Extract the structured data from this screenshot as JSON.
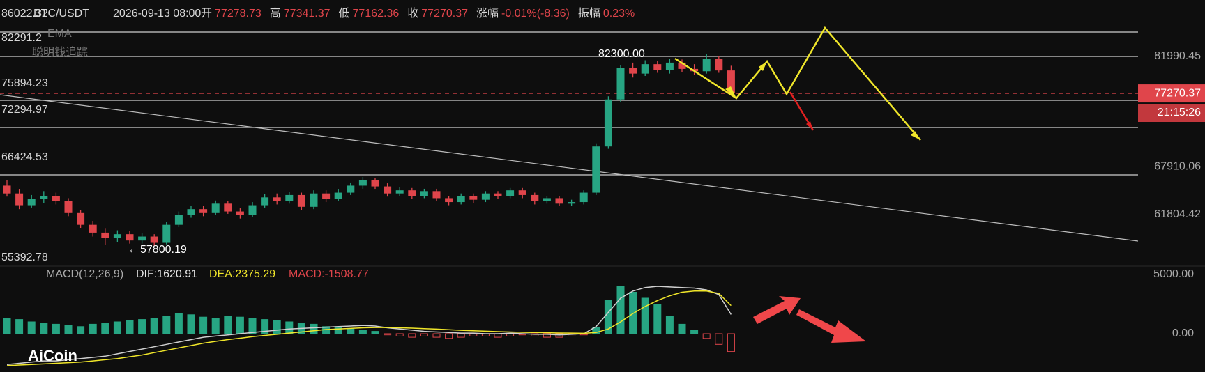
{
  "header": {
    "symbol": "BTC/USDT",
    "time": "2026-09-13 08:00",
    "fields": [
      {
        "label": "开",
        "value": "77278.73"
      },
      {
        "label": "高",
        "value": "77341.37"
      },
      {
        "label": "低",
        "value": "77162.36"
      },
      {
        "label": "收",
        "value": "77270.37"
      },
      {
        "label": "涨幅",
        "value": "-0.01%(-8.36)"
      },
      {
        "label": "振幅",
        "value": "0.23%"
      }
    ]
  },
  "indicators": [
    "EMA",
    "聪明钱追踪"
  ],
  "level_labels": [
    "86022.32",
    "82291.2",
    "75894.23",
    "72294.97",
    "66424.53",
    "55392.78"
  ],
  "annotations": {
    "high": "82300.00",
    "low": "57800.19"
  },
  "price_axis": {
    "ticks": [
      81990.45,
      67910.06,
      61804.42
    ],
    "current_price": 77270.37,
    "countdown": "21:15:26"
  },
  "candles": [
    [
      65500,
      66200,
      64100,
      64500
    ],
    [
      64500,
      65000,
      62500,
      63000
    ],
    [
      63000,
      64300,
      62700,
      63800
    ],
    [
      63800,
      64800,
      63300,
      64200
    ],
    [
      64200,
      64600,
      63100,
      63500
    ],
    [
      63500,
      63900,
      61600,
      62000
    ],
    [
      62000,
      62400,
      60100,
      60500
    ],
    [
      60500,
      61000,
      59000,
      59500
    ],
    [
      59500,
      60000,
      57900,
      58800
    ],
    [
      58800,
      59800,
      58300,
      59300
    ],
    [
      59300,
      59700,
      58100,
      58500
    ],
    [
      58500,
      59400,
      58100,
      59000
    ],
    [
      59000,
      59300,
      57800,
      58200
    ],
    [
      58200,
      60900,
      58000,
      60500
    ],
    [
      60500,
      62200,
      60200,
      61800
    ],
    [
      61800,
      62900,
      61400,
      62500
    ],
    [
      62500,
      62900,
      61600,
      62000
    ],
    [
      62000,
      63600,
      61800,
      63200
    ],
    [
      63200,
      63500,
      61900,
      62200
    ],
    [
      62200,
      62600,
      61300,
      61800
    ],
    [
      61800,
      63400,
      61500,
      63000
    ],
    [
      63000,
      64400,
      62700,
      64000
    ],
    [
      64000,
      64500,
      63100,
      63500
    ],
    [
      63500,
      64700,
      63200,
      64300
    ],
    [
      64300,
      64600,
      62400,
      62800
    ],
    [
      62800,
      64900,
      62500,
      64500
    ],
    [
      64500,
      64900,
      63400,
      63800
    ],
    [
      63800,
      65000,
      63500,
      64600
    ],
    [
      64600,
      65900,
      64300,
      65500
    ],
    [
      65500,
      66600,
      65100,
      66200
    ],
    [
      66200,
      66500,
      65000,
      65400
    ],
    [
      65400,
      65800,
      64100,
      64500
    ],
    [
      64500,
      65300,
      64200,
      64900
    ],
    [
      64900,
      65200,
      63800,
      64200
    ],
    [
      64200,
      65100,
      63900,
      64800
    ],
    [
      64800,
      65100,
      63500,
      63900
    ],
    [
      63900,
      64200,
      63000,
      63400
    ],
    [
      63400,
      64500,
      63100,
      64200
    ],
    [
      64200,
      64500,
      63300,
      63700
    ],
    [
      63700,
      64800,
      63400,
      64500
    ],
    [
      64500,
      64800,
      63800,
      64200
    ],
    [
      64200,
      65200,
      63900,
      64900
    ],
    [
      64900,
      65200,
      63900,
      64300
    ],
    [
      64300,
      64600,
      63100,
      63500
    ],
    [
      63500,
      64200,
      63200,
      63900
    ],
    [
      63900,
      64200,
      62900,
      63200
    ],
    [
      63200,
      63700,
      62900,
      63400
    ],
    [
      63400,
      64900,
      63100,
      64600
    ],
    [
      64600,
      70900,
      64300,
      70500
    ],
    [
      70500,
      76900,
      70200,
      76500
    ],
    [
      76500,
      80900,
      76200,
      80500
    ],
    [
      80500,
      81200,
      79300,
      79800
    ],
    [
      79800,
      81500,
      79500,
      81000
    ],
    [
      81000,
      81400,
      79900,
      80300
    ],
    [
      80300,
      81700,
      79800,
      81200
    ],
    [
      81200,
      81600,
      80000,
      80400
    ],
    [
      80400,
      81000,
      79600,
      80100
    ],
    [
      80100,
      82300,
      79800,
      81700
    ],
    [
      81700,
      82000,
      79900,
      80200
    ],
    [
      80200,
      80800,
      77000,
      77270.37
    ]
  ],
  "macd": {
    "label": "MACD(12,26,9)",
    "dif_label": "DIF:1620.91",
    "dea_label": "DEA:2375.29",
    "macd_label": "MACD:-1508.77",
    "ticks": [
      {
        "value": 5000,
        "label": "5000.00"
      },
      {
        "value": 0,
        "label": "0.00"
      }
    ],
    "histogram": [
      1300,
      1200,
      1000,
      900,
      800,
      700,
      600,
      800,
      900,
      1000,
      1100,
      1200,
      1300,
      1500,
      1700,
      1600,
      1400,
      1300,
      1500,
      1400,
      1300,
      1200,
      1100,
      1000,
      900,
      800,
      600,
      500,
      400,
      300,
      200,
      -100,
      -200,
      -300,
      -200,
      -300,
      -400,
      -300,
      -200,
      -200,
      -300,
      -200,
      -100,
      -200,
      -300,
      -300,
      -200,
      -100,
      500,
      2800,
      4000,
      3500,
      3000,
      2500,
      1500,
      800,
      300,
      -400,
      -900,
      -1508.77
    ],
    "dif": [
      -2600,
      -2500,
      -2400,
      -2300,
      -2300,
      -2200,
      -2100,
      -2000,
      -1900,
      -1700,
      -1500,
      -1300,
      -1100,
      -900,
      -700,
      -500,
      -300,
      -200,
      -100,
      0,
      100,
      200,
      300,
      400,
      450,
      500,
      550,
      600,
      650,
      700,
      650,
      500,
      400,
      300,
      200,
      150,
      100,
      50,
      50,
      0,
      0,
      50,
      0,
      -50,
      -50,
      -100,
      -50,
      0,
      600,
      1800,
      3000,
      3600,
      3900,
      4000,
      3950,
      3900,
      3850,
      3700,
      3300,
      1620.91
    ],
    "dea": [
      -2700,
      -2650,
      -2600,
      -2550,
      -2500,
      -2450,
      -2400,
      -2300,
      -2200,
      -2100,
      -1950,
      -1800,
      -1600,
      -1400,
      -1200,
      -1000,
      -800,
      -650,
      -500,
      -380,
      -250,
      -150,
      -50,
      50,
      150,
      250,
      350,
      400,
      450,
      500,
      520,
      520,
      500,
      470,
      430,
      390,
      340,
      290,
      250,
      210,
      180,
      150,
      120,
      100,
      80,
      60,
      50,
      40,
      100,
      400,
      1000,
      1700,
      2300,
      2800,
      3200,
      3500,
      3600,
      3600,
      3400,
      2375.29
    ]
  },
  "logo": "AiCoin"
}
